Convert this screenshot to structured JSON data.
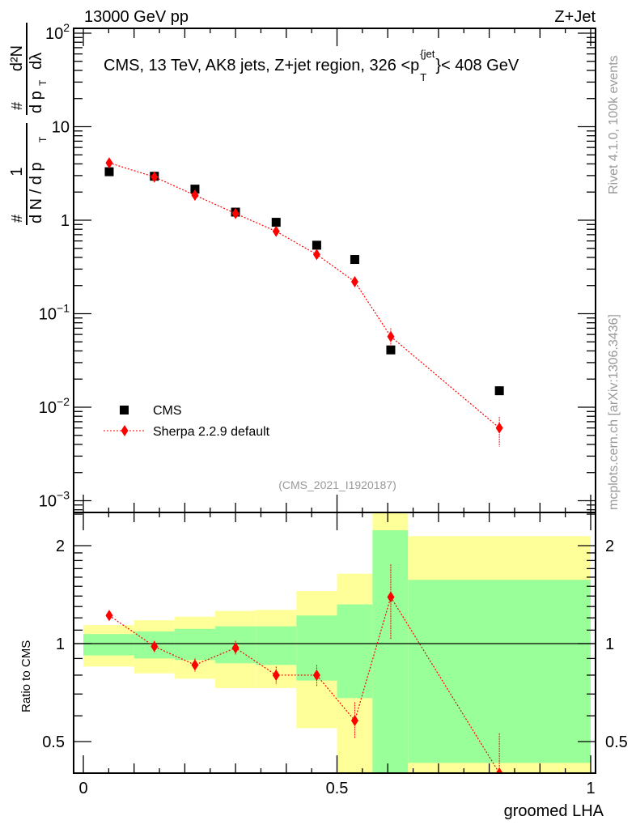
{
  "header": {
    "beam": "13000 GeV pp",
    "process": "Z+Jet",
    "rivet": "Rivet 4.1.0,  100k events",
    "mcplots": "mcplots.cern.ch [arXiv:1306.3436]",
    "analysis": "(CMS_2021_I1920187)"
  },
  "chart_data": [
    {
      "type": "scatter",
      "panel": "main",
      "title": {
        "prefix": "CMS, 13 TeV, AK8 jets, Z+jet region, 326 <p",
        "sub": "T",
        "sup": "{jet",
        "suffix": "}< 408 GeV"
      },
      "ylabel": {
        "hash1": "#",
        "one": "1",
        "den1": "d N / d p",
        "T": "T",
        "num2": "d²N",
        "hash2": "#",
        "den2": "d p",
        "dl": "dλ"
      },
      "yscale": "log",
      "ylim": [
        0.00075,
        110
      ],
      "xlim": [
        -0.02,
        1.01
      ],
      "ytick_labels": [
        {
          "v": 100,
          "base": "10",
          "exp": "2"
        },
        {
          "v": 10,
          "base": "10",
          "exp": ""
        },
        {
          "v": 1,
          "base": "1",
          "exp": ""
        },
        {
          "v": 0.1,
          "base": "10",
          "exp": "−1"
        },
        {
          "v": 0.01,
          "base": "10",
          "exp": "−2"
        },
        {
          "v": 0.001,
          "base": "10",
          "exp": "−3"
        }
      ],
      "legend": {
        "position": "lower-left",
        "entries": [
          "CMS",
          "Sherpa 2.2.9 default"
        ]
      },
      "bin_edges": [
        0,
        0.1,
        0.18,
        0.26,
        0.34,
        0.42,
        0.5,
        0.57,
        0.64,
        1.0
      ],
      "series": [
        {
          "name": "CMS",
          "color": "#000000",
          "marker": "square",
          "x": [
            0.051,
            0.14,
            0.22,
            0.3,
            0.38,
            0.46,
            0.535,
            0.606,
            0.82
          ],
          "y": [
            3.3,
            2.95,
            2.15,
            1.22,
            0.95,
            0.54,
            0.38,
            0.041,
            0.015
          ]
        },
        {
          "name": "Sherpa 2.2.9 default",
          "color": "#ff0000",
          "marker": "diamond",
          "x": [
            0.051,
            0.14,
            0.22,
            0.3,
            0.38,
            0.46,
            0.535,
            0.606,
            0.82
          ],
          "y": [
            4.1,
            2.9,
            1.85,
            1.18,
            0.76,
            0.43,
            0.22,
            0.057,
            0.006
          ],
          "yerr_low": [
            3.9,
            2.75,
            1.76,
            1.12,
            0.72,
            0.4,
            0.195,
            0.045,
            0.0038
          ],
          "yerr_high": [
            4.3,
            3.05,
            1.94,
            1.24,
            0.8,
            0.46,
            0.245,
            0.07,
            0.0079
          ]
        }
      ]
    },
    {
      "type": "scatter",
      "panel": "ratio",
      "ylabel": "Ratio to CMS",
      "xlabel": "groomed LHA",
      "yscale": "log",
      "ylim": [
        0.4,
        2.5
      ],
      "reference": 1,
      "ytick_labels": [
        "0.5",
        "1",
        "2"
      ],
      "xtick_labels": [
        "0",
        "0.5",
        "1"
      ],
      "xticks": [
        0,
        0.5,
        1
      ],
      "yticks": [
        0.5,
        1,
        2
      ],
      "bands": {
        "green_color": "#99ff99",
        "yellow_color": "#ffff99",
        "green_low": [
          0.92,
          0.9,
          0.89,
          0.87,
          0.86,
          0.77,
          0.68,
          0.3,
          0.43
        ],
        "green_high": [
          1.07,
          1.09,
          1.11,
          1.13,
          1.13,
          1.22,
          1.32,
          2.23,
          1.57
        ],
        "yellow_low": [
          0.85,
          0.81,
          0.78,
          0.73,
          0.73,
          0.55,
          0.3,
          0.2,
          0.3
        ],
        "yellow_high": [
          1.14,
          1.18,
          1.21,
          1.26,
          1.27,
          1.45,
          1.64,
          3.0,
          2.14
        ]
      },
      "series": [
        {
          "name": "Sherpa 2.2.9 default",
          "color": "#ff0000",
          "x": [
            0.051,
            0.14,
            0.22,
            0.3,
            0.38,
            0.46,
            0.535,
            0.606,
            0.82
          ],
          "y": [
            1.22,
            0.98,
            0.86,
            0.97,
            0.8,
            0.8,
            0.58,
            1.39,
            0.4
          ],
          "yerr_low": [
            1.18,
            0.94,
            0.82,
            0.92,
            0.75,
            0.74,
            0.51,
            1.03,
            0.25
          ],
          "yerr_high": [
            1.26,
            1.02,
            0.9,
            1.02,
            0.85,
            0.86,
            0.66,
            1.75,
            0.53
          ]
        }
      ]
    }
  ]
}
